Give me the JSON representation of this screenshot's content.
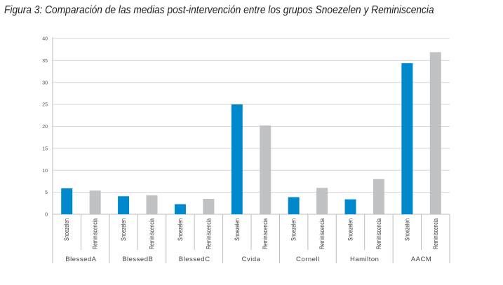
{
  "chart_data": {
    "type": "bar",
    "title": "Figura 3: Comparación de las medias post-intervención entre los grupos Snoezelen y Reminiscencia",
    "groups": [
      "BlessedA",
      "BlessedB",
      "BlessedC",
      "Cvida",
      "Cornell",
      "Hamilton",
      "AACM"
    ],
    "sub_categories": [
      "Snoezelen",
      "Reminiscencia"
    ],
    "series": [
      {
        "name": "Snoezelen",
        "color": "#0088cc",
        "values": [
          5.9,
          4.1,
          2.3,
          25.0,
          3.9,
          3.4,
          34.4
        ]
      },
      {
        "name": "Reminiscencia",
        "color": "#c0c1c3",
        "values": [
          5.4,
          4.3,
          3.5,
          20.2,
          6.0,
          8.0,
          36.9
        ]
      }
    ],
    "ylim": [
      0,
      40
    ],
    "yticks": [
      "0",
      "5",
      "10",
      "15",
      "20",
      "25",
      "30",
      "35",
      "40"
    ],
    "grid": true,
    "legend": "none"
  }
}
